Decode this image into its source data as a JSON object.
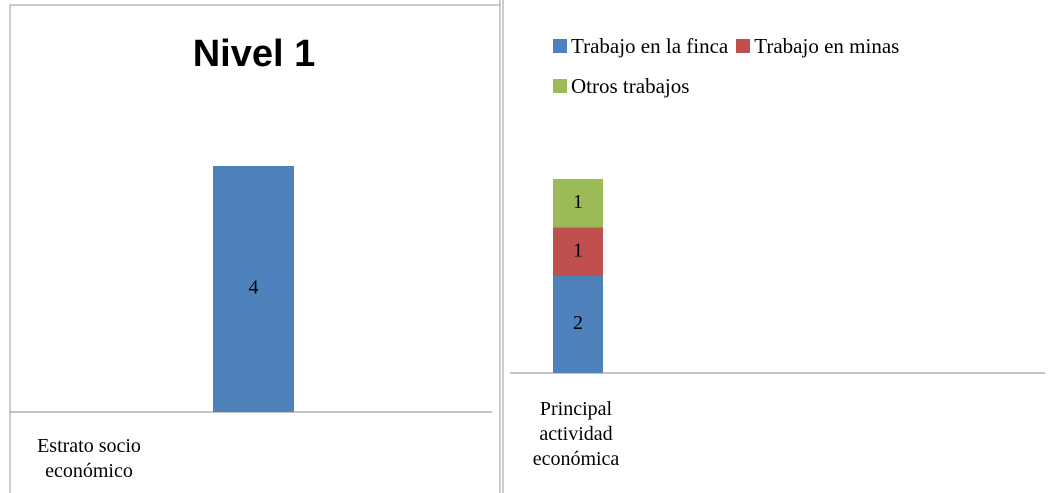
{
  "chart_data": [
    {
      "type": "bar",
      "title": "Nivel 1",
      "categories": [
        "Estrato socio económico"
      ],
      "values": [
        4
      ],
      "color": "#4f81bd"
    },
    {
      "type": "stacked_bar",
      "categories": [
        "Principal actividad económica"
      ],
      "series": [
        {
          "name": "Trabajo en la finca",
          "color": "#4f81bd",
          "values": [
            2
          ]
        },
        {
          "name": "Trabajo en minas",
          "color": "#c0504d",
          "values": [
            1
          ]
        },
        {
          "name": "Otros trabajos",
          "color": "#9bbb59",
          "values": [
            1
          ]
        }
      ]
    }
  ]
}
